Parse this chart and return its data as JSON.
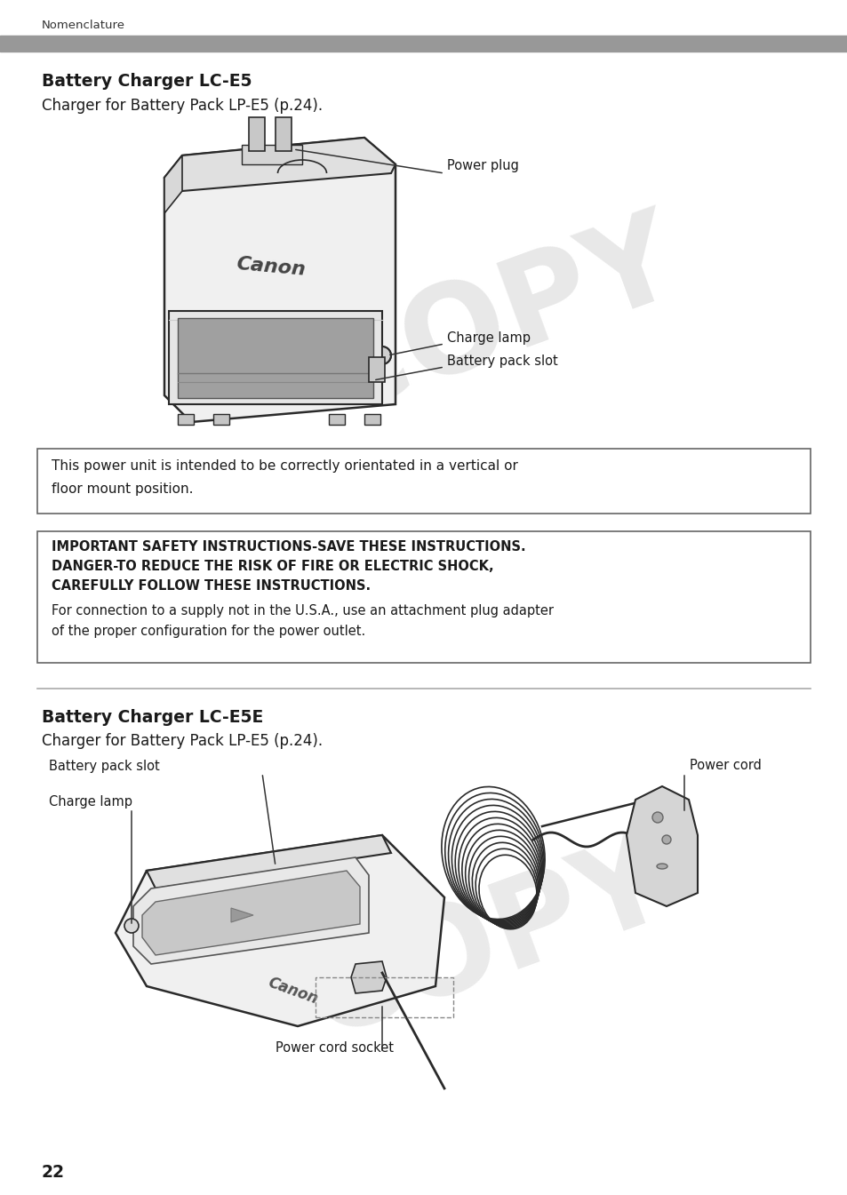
{
  "page_num": "22",
  "header_text": "Nomenclature",
  "header_bar_color": "#989898",
  "bg_color": "#ffffff",
  "section1_title": "Battery Charger LC-E5",
  "section1_subtitle": "Charger for Battery Pack LP-E5 (p.24).",
  "label_power_plug": "Power plug",
  "label_charge_lamp": "Charge lamp",
  "label_battery_pack_slot": "Battery pack slot",
  "box1_line1": "This power unit is intended to be correctly orientated in a vertical or",
  "box1_line2": "floor mount position.",
  "box2_bold1": "IMPORTANT SAFETY INSTRUCTIONS-SAVE THESE INSTRUCTIONS.",
  "box2_bold2": "DANGER-TO REDUCE THE RISK OF FIRE OR ELECTRIC SHOCK,",
  "box2_bold3": "CAREFULLY FOLLOW THESE INSTRUCTIONS.",
  "box2_normal1": "For connection to a supply not in the U.S.A., use an attachment plug adapter",
  "box2_normal2": "of the proper configuration for the power outlet.",
  "section2_title": "Battery Charger LC-E5E",
  "section2_subtitle": "Charger for Battery Pack LP-E5 (p.24).",
  "label_battery_pack_slot2": "Battery pack slot",
  "label_charge_lamp2": "Charge lamp",
  "label_power_cord": "Power cord",
  "label_power_cord_socket": "Power cord socket",
  "divider_color": "#aaaaaa",
  "line_color": "#333333",
  "text_color": "#1a1a1a",
  "body_color": "#f2f2f2",
  "body_edge": "#2a2a2a",
  "watermark_color": "#cccccc"
}
